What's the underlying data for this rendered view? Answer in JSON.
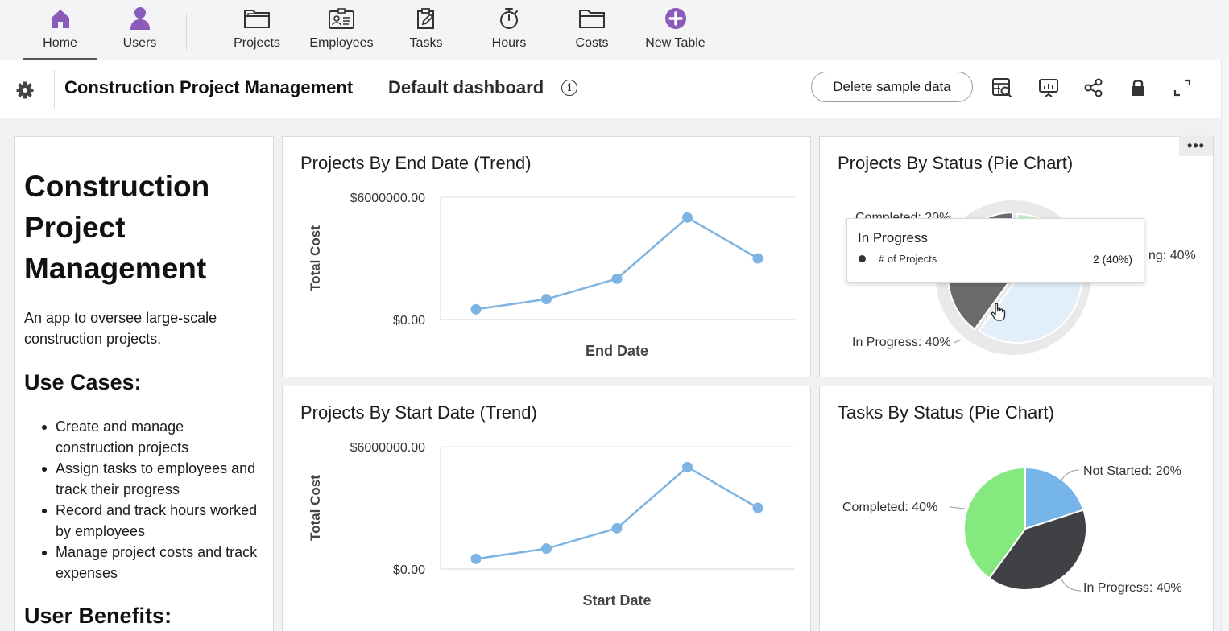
{
  "nav": {
    "items": [
      {
        "label": "Home",
        "icon": "house-icon",
        "active": true
      },
      {
        "label": "Users",
        "icon": "user-icon"
      },
      {
        "label": "Projects",
        "icon": "folder-open-icon"
      },
      {
        "label": "Employees",
        "icon": "id-card-icon"
      },
      {
        "label": "Tasks",
        "icon": "clipboard-edit-icon"
      },
      {
        "label": "Hours",
        "icon": "stopwatch-icon"
      },
      {
        "label": "Costs",
        "icon": "folder-icon"
      },
      {
        "label": "New Table",
        "icon": "plus-circle-icon"
      }
    ],
    "accent_color": "#8a5bb8"
  },
  "header": {
    "app_title": "Construction Project Management",
    "dashboard_title": "Default dashboard",
    "delete_button": "Delete sample data",
    "icons": [
      "table-search-icon",
      "presentation-icon",
      "share-icon",
      "lock-icon",
      "expand-icon"
    ]
  },
  "description": {
    "title": "Construction Project Management",
    "lead": "An app to oversee large-scale construction projects.",
    "use_cases_heading": "Use Cases:",
    "use_cases": [
      "Create and manage construction projects",
      "Assign tasks to employees and track their progress",
      "Record and track hours worked by employees",
      "Manage project costs and track expenses"
    ],
    "benefits_heading": "User Benefits:"
  },
  "tooltip": {
    "title": "In Progress",
    "series": "# of Projects",
    "value": "2 (40%)"
  },
  "more_menu": "•••",
  "chart_data": [
    {
      "type": "line",
      "title": "Projects By End Date (Trend)",
      "xlabel": "End Date",
      "ylabel": "Total Cost",
      "y_tick_labels": [
        "$6000000.00",
        "$0.00"
      ],
      "ylim": [
        0,
        6000000
      ],
      "values": [
        500000,
        1000000,
        2000000,
        5000000,
        3000000
      ],
      "color": "#7db4e3"
    },
    {
      "type": "pie",
      "title": "Projects By Status (Pie Chart)",
      "slices": [
        {
          "label": "Completed",
          "value": 20,
          "display": "Completed: 20%",
          "color": "#c8f0c8"
        },
        {
          "label": "Not Started",
          "value": 40,
          "display": "ng: 40%",
          "color": "#e3eefb"
        },
        {
          "label": "In Progress",
          "value": 40,
          "display": "In Progress: 40%",
          "color": "#6b6b6b"
        }
      ]
    },
    {
      "type": "line",
      "title": "Projects By Start Date (Trend)",
      "xlabel": "Start Date",
      "ylabel": "Total Cost",
      "y_tick_labels": [
        "$6000000.00",
        "$0.00"
      ],
      "ylim": [
        0,
        6000000
      ],
      "values": [
        500000,
        1000000,
        2000000,
        5000000,
        3000000
      ],
      "color": "#7db4e3"
    },
    {
      "type": "pie",
      "title": "Tasks By Status (Pie Chart)",
      "slices": [
        {
          "label": "Not Started",
          "value": 20,
          "display": "Not Started: 20%",
          "color": "#76b5ea"
        },
        {
          "label": "In Progress",
          "value": 40,
          "display": "In Progress: 40%",
          "color": "#3f4144"
        },
        {
          "label": "Completed",
          "value": 40,
          "display": "Completed: 40%",
          "color": "#86e980"
        }
      ]
    }
  ]
}
